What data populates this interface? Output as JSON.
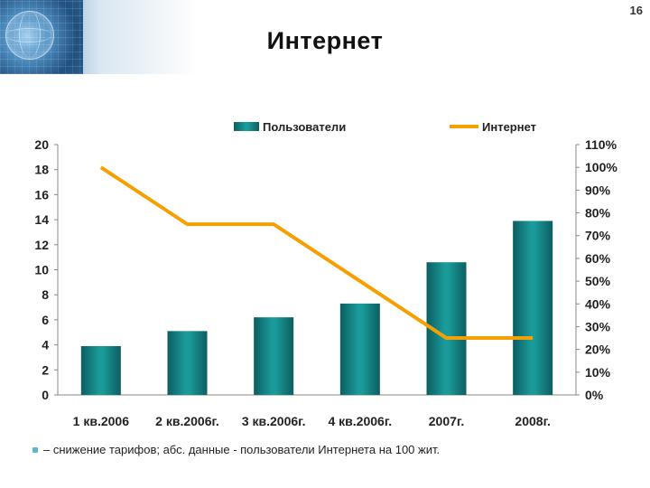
{
  "header": {
    "title": "Интернет",
    "page_number": "16"
  },
  "footnote": {
    "text": "– снижение тарифов; абс. данные - пользователи Интернета на 100 жит."
  },
  "colors": {
    "bar": "#1a9a9a",
    "bar_dark": "#0c5e60",
    "line": "#f5a000"
  },
  "chart_data": {
    "type": "bar",
    "categories": [
      "1 кв.2006",
      "2 кв.2006г.",
      "3 кв.2006г.",
      "4 кв.2006г.",
      "2007г.",
      "2008г."
    ],
    "series": [
      {
        "name": "Пользователи",
        "type": "bar",
        "axis": "left",
        "values": [
          3.9,
          5.1,
          6.2,
          7.3,
          10.6,
          13.9
        ]
      },
      {
        "name": "Интернет",
        "type": "line",
        "axis": "right",
        "values": [
          100,
          75,
          75,
          50,
          25,
          25
        ]
      }
    ],
    "left_axis": {
      "ylim": [
        0,
        20
      ],
      "ticks": [
        "0",
        "2",
        "4",
        "6",
        "8",
        "10",
        "12",
        "14",
        "16",
        "18",
        "20"
      ]
    },
    "right_axis": {
      "ylim": [
        0,
        110
      ],
      "ticks": [
        "0%",
        "10%",
        "20%",
        "30%",
        "40%",
        "50%",
        "60%",
        "70%",
        "80%",
        "90%",
        "100%",
        "110%"
      ]
    },
    "grid": false,
    "legend": "top"
  }
}
